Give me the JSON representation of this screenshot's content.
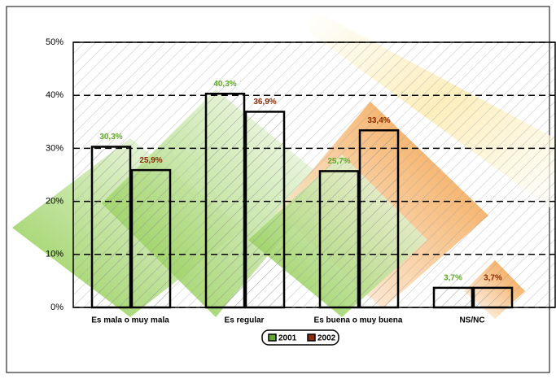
{
  "chart_data": {
    "type": "bar",
    "categories": [
      "Es mala o muy mala",
      "Es regular",
      "Es buena o muy buena",
      "NS/NC"
    ],
    "series": [
      {
        "name": "2001",
        "color": "#5fa82a",
        "values": [
          30.3,
          40.3,
          25.7,
          3.7
        ],
        "value_labels": [
          "30,3%",
          "40,3%",
          "25,7%",
          "3,7%"
        ]
      },
      {
        "name": "2002",
        "color": "#8b2a00",
        "values": [
          25.9,
          36.9,
          33.4,
          3.7
        ],
        "value_labels": [
          "25,9%",
          "36,9%",
          "33,4%",
          "3,7%"
        ]
      }
    ],
    "ylim": [
      0,
      50
    ],
    "yticks": [
      {
        "value": 0,
        "label": "0%"
      },
      {
        "value": 10,
        "label": "10%"
      },
      {
        "value": 20,
        "label": "20%"
      },
      {
        "value": 30,
        "label": "30%"
      },
      {
        "value": 40,
        "label": "40%"
      },
      {
        "value": 50,
        "label": "50%"
      }
    ],
    "grid": true,
    "legend": "bottom"
  }
}
